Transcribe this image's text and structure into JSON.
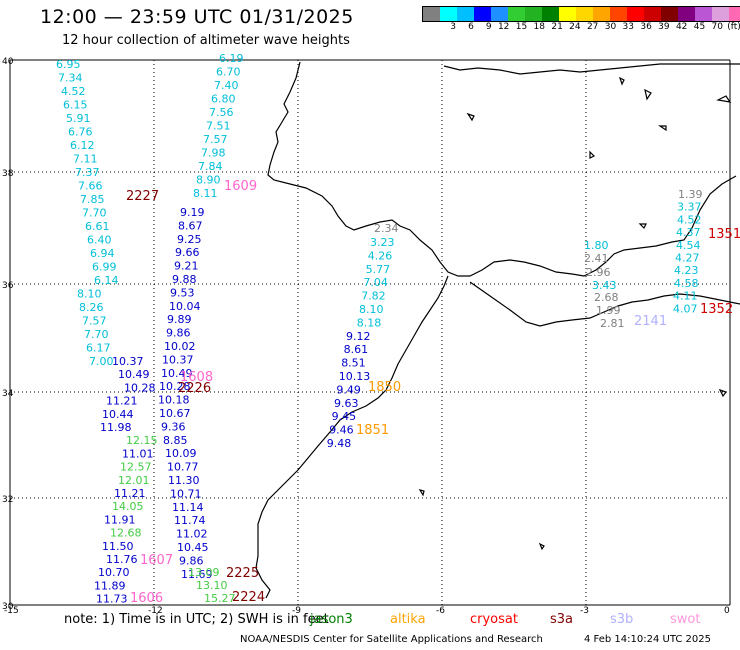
{
  "header": {
    "title": "12:00 — 23:59 UTC 01/31/2025",
    "subtitle": "12 hour collection of altimeter wave heights"
  },
  "legend": {
    "colors": [
      "#808080",
      "#00ffff",
      "#00bfff",
      "#0000ff",
      "#1e90ff",
      "#32cd32",
      "#22b222",
      "#008000",
      "#ffff00",
      "#ffd700",
      "#ffa500",
      "#ff4500",
      "#ff0000",
      "#cc0000",
      "#800000",
      "#800080",
      "#ba55d3",
      "#dda0dd",
      "#ff69b4",
      "#000000"
    ],
    "labels": [
      "3",
      "6",
      "9",
      "12",
      "15",
      "18",
      "21",
      "24",
      "27",
      "30",
      "33",
      "36",
      "39",
      "42",
      "45",
      "70",
      "(ft)"
    ]
  },
  "map": {
    "lon_range": [
      -15,
      0
    ],
    "lat_range": [
      30,
      40
    ],
    "lon_ticks": [
      "-15",
      "-12",
      "-9",
      "-6",
      "-3",
      "0"
    ],
    "lat_ticks": [
      "40",
      "38",
      "36",
      "34",
      "32",
      "30"
    ]
  },
  "values": {
    "c1_cyan": [
      "6.95",
      "7.34",
      "4.52",
      "6.15",
      "5.91",
      "6.76",
      "6.12",
      "7.11",
      "7.37",
      "7.66",
      "7.85",
      "7.70",
      "6.61",
      "6.40",
      "6.94",
      "6.99",
      "6.14",
      "8.10",
      "8.26",
      "7.57",
      "7.70",
      "6.17",
      "7.00"
    ],
    "c1_blue": [
      "10.37",
      "10.49",
      "10.28",
      "11.21",
      "10.44",
      "11.98"
    ],
    "c1_green": [
      "12.15"
    ],
    "c1_blue2": [
      "11.01"
    ],
    "c1_green2": [
      "12.57",
      "12.01"
    ],
    "c1_blue3": [
      "11.21"
    ],
    "c1_green3": [
      "14.05"
    ],
    "c1_blue4": [
      "11.91"
    ],
    "c1_green4": [
      "12.68"
    ],
    "c1_blue5": [
      "11.50",
      "11.76",
      "10.70",
      "11.89",
      "11.73"
    ],
    "c2_cyan": [
      "6.19",
      "6.70",
      "7.40",
      "6.80",
      "7.56",
      "7.51",
      "7.57",
      "7.98",
      "7.84",
      "8.90",
      "8.11"
    ],
    "c2_blue": [
      "9.19",
      "8.67",
      "9.25",
      "9.66",
      "9.21",
      "9.88",
      "9.53",
      "10.04",
      "9.89",
      "9.86",
      "10.02",
      "10.37",
      "10.49",
      "10.28",
      "10.18",
      "10.67",
      "9.36",
      "8.85",
      "10.09",
      "10.77",
      "11.30",
      "10.71",
      "11.14",
      "11.74",
      "11.02",
      "10.45",
      "9.86",
      "11.69"
    ],
    "c2_green": [
      "13.09",
      "13.10",
      "15.27"
    ],
    "c3_gray": [
      "2.34"
    ],
    "c3_cyan": [
      "3.23",
      "4.26",
      "5.77",
      "7.04",
      "7.82",
      "8.10",
      "8.18"
    ],
    "c3_blue": [
      "9.12",
      "8.61",
      "8.51",
      "10.13",
      "9.49",
      "9.63",
      "9.45",
      "9.46",
      "9.48"
    ],
    "c4_gray": [
      "2.41",
      "2.96",
      "2.68",
      "1.99",
      "2.81"
    ],
    "c4_cyan": [
      "1.80",
      "3.43"
    ],
    "c5_cyan": [
      "1.39",
      "3.37",
      "4.52",
      "4.37",
      "4.54",
      "4.27",
      "4.23",
      "4.58",
      "4.11",
      "4.07"
    ],
    "passes": {
      "p2227": "2227",
      "p1609": "1609",
      "p1608": "1608",
      "p2226": "2226",
      "p1850": "1850",
      "p1851": "1851",
      "p1607": "1607",
      "p1606": "1606",
      "p2225": "2225",
      "p2224": "2224",
      "p1351": "1351",
      "p1352": "1352",
      "p2141": "2141"
    }
  },
  "footer": {
    "note_prefix": "note:  1) Time is in UTC;  2) SWH is in feet",
    "satellites": [
      {
        "name": "jason3",
        "color": "#008000"
      },
      {
        "name": "altika",
        "color": "#ffa500"
      },
      {
        "name": "cryosat",
        "color": "#ff0000"
      },
      {
        "name": "s3a",
        "color": "#800000"
      },
      {
        "name": "s3b",
        "color": "#b0b0ff"
      },
      {
        "name": "swot",
        "color": "#ff99dd"
      }
    ],
    "credit": "NOAA/NESDIS Center for Satellite Applications and Research",
    "date": "4 Feb 14:10:24 UTC 2025"
  }
}
